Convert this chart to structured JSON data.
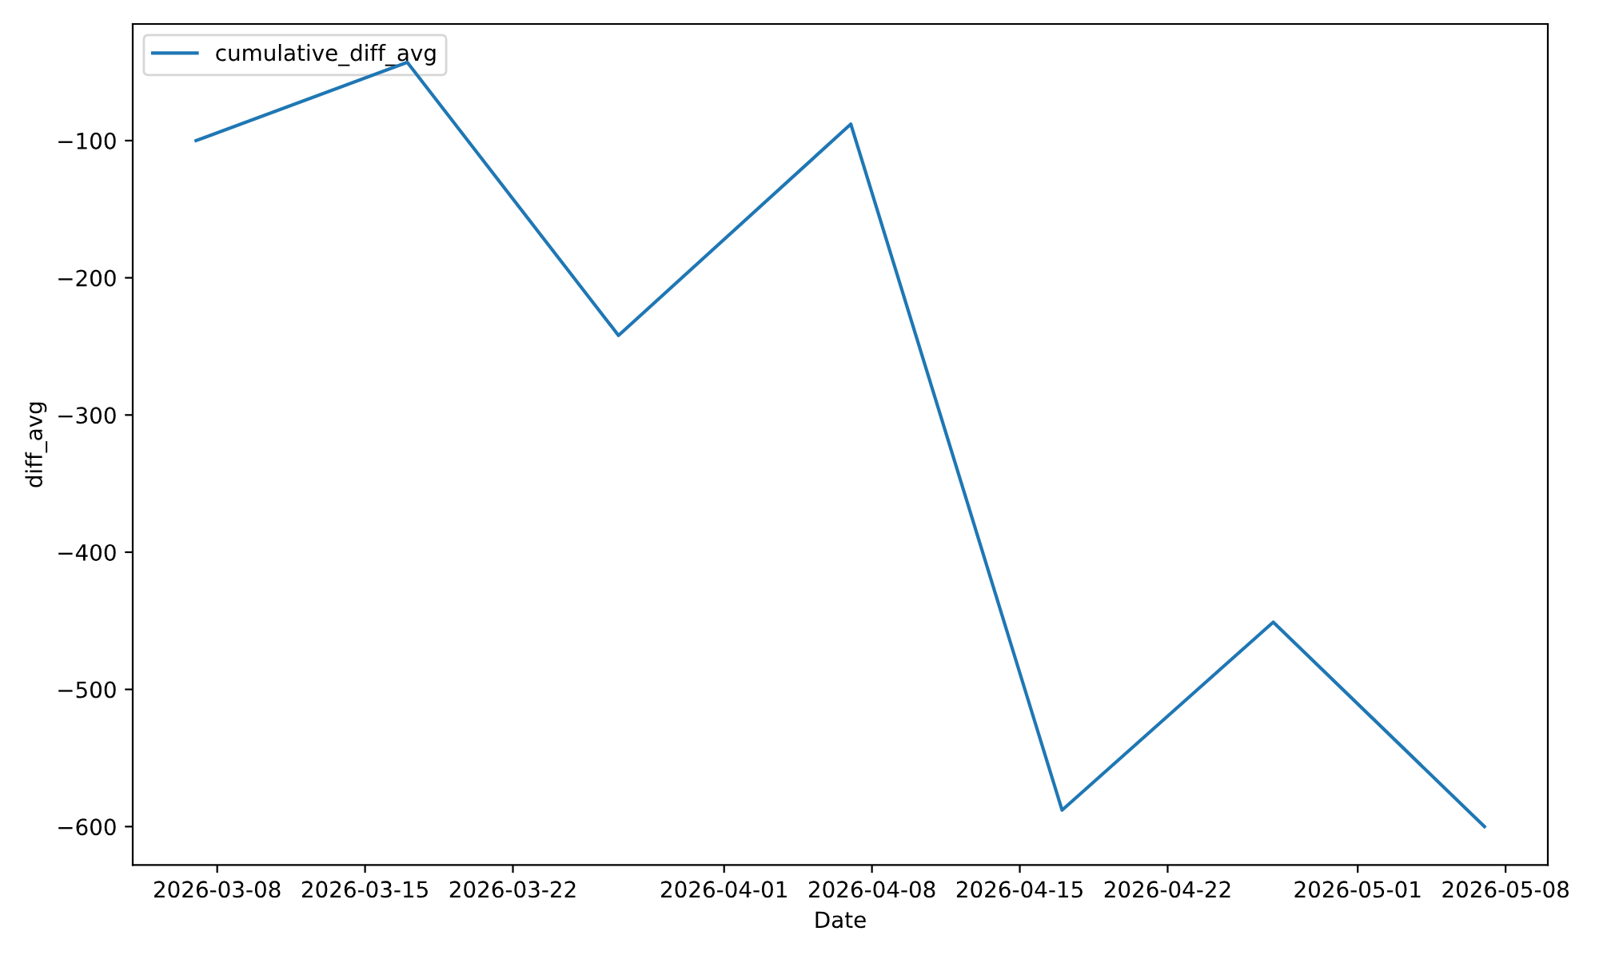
{
  "chart_data": {
    "type": "line",
    "xlabel": "Date",
    "ylabel": "diff_avg",
    "x": [
      "2026-03-07",
      "2026-03-17",
      "2026-03-27",
      "2026-04-07",
      "2026-04-17",
      "2026-04-27",
      "2026-05-07"
    ],
    "series": [
      {
        "name": "cumulative_diff_avg",
        "color": "#1f77b4",
        "values": [
          -100,
          -43,
          -242,
          -88,
          -588,
          -451,
          -600
        ]
      }
    ],
    "xlim": [
      "2026-03-04",
      "2026-05-10"
    ],
    "xticks": [
      "2026-03-08",
      "2026-03-15",
      "2026-03-22",
      "2026-04-01",
      "2026-04-08",
      "2026-04-15",
      "2026-04-22",
      "2026-05-01",
      "2026-05-08"
    ],
    "ylim": [
      -628,
      -15
    ],
    "yticks": [
      {
        "value": -600,
        "label": "−600"
      },
      {
        "value": -500,
        "label": "−500"
      },
      {
        "value": -400,
        "label": "−400"
      },
      {
        "value": -300,
        "label": "−300"
      },
      {
        "value": -200,
        "label": "−200"
      },
      {
        "value": -100,
        "label": "−100"
      }
    ],
    "legend": "upper left",
    "grid": false,
    "marker": "none",
    "line_style": "solid"
  }
}
